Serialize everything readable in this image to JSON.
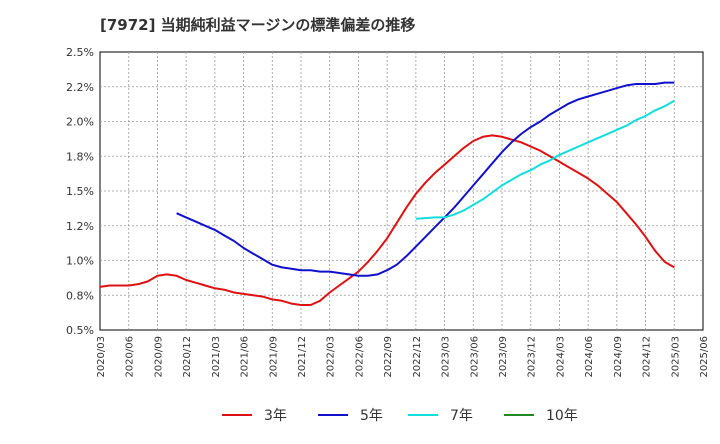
{
  "chart_data": {
    "type": "line",
    "title": "[7972]  当期純利益マージンの標準偏差の推移",
    "xlabel": "",
    "ylabel": "",
    "ylim": [
      0.5,
      2.5
    ],
    "y_ticks": [
      "0.5%",
      "0.8%",
      "1.0%",
      "1.2%",
      "1.5%",
      "1.8%",
      "2.0%",
      "2.2%",
      "2.5%"
    ],
    "y_tick_values": [
      0.5,
      0.75,
      1.0,
      1.25,
      1.5,
      1.75,
      2.0,
      2.25,
      2.5
    ],
    "x_ticks": [
      "2020/03",
      "2020/06",
      "2020/09",
      "2020/12",
      "2021/03",
      "2021/06",
      "2021/09",
      "2021/12",
      "2022/03",
      "2022/06",
      "2022/09",
      "2022/12",
      "2023/03",
      "2023/06",
      "2023/09",
      "2023/12",
      "2024/03",
      "2024/06",
      "2024/09",
      "2024/12",
      "2025/03",
      "2025/06"
    ],
    "grid": true,
    "legend_position": "bottom",
    "series": [
      {
        "name": "3年",
        "color": "#dd1111",
        "x": [
          "2020/03",
          "2020/04",
          "2020/05",
          "2020/06",
          "2020/07",
          "2020/08",
          "2020/09",
          "2020/10",
          "2020/11",
          "2020/12",
          "2021/01",
          "2021/02",
          "2021/03",
          "2021/04",
          "2021/05",
          "2021/06",
          "2021/07",
          "2021/08",
          "2021/09",
          "2021/10",
          "2021/11",
          "2021/12",
          "2022/01",
          "2022/02",
          "2022/03",
          "2022/04",
          "2022/05",
          "2022/06",
          "2022/07",
          "2022/08",
          "2022/09",
          "2022/10",
          "2022/11",
          "2022/12",
          "2023/01",
          "2023/02",
          "2023/03",
          "2023/04",
          "2023/05",
          "2023/06",
          "2023/07",
          "2023/08",
          "2023/09",
          "2023/10",
          "2023/11",
          "2023/12",
          "2024/01",
          "2024/02",
          "2024/03",
          "2024/04",
          "2024/05",
          "2024/06",
          "2024/07",
          "2024/08",
          "2024/09",
          "2024/10",
          "2024/11",
          "2024/12",
          "2025/01",
          "2025/02",
          "2025/03"
        ],
        "values": [
          0.81,
          0.82,
          0.82,
          0.82,
          0.83,
          0.85,
          0.89,
          0.9,
          0.89,
          0.86,
          0.84,
          0.82,
          0.8,
          0.79,
          0.77,
          0.76,
          0.75,
          0.74,
          0.72,
          0.71,
          0.69,
          0.68,
          0.68,
          0.71,
          0.77,
          0.82,
          0.87,
          0.92,
          0.99,
          1.07,
          1.16,
          1.27,
          1.38,
          1.48,
          1.56,
          1.63,
          1.69,
          1.75,
          1.81,
          1.86,
          1.89,
          1.9,
          1.89,
          1.87,
          1.85,
          1.82,
          1.79,
          1.75,
          1.71,
          1.67,
          1.63,
          1.59,
          1.54,
          1.48,
          1.42,
          1.34,
          1.26,
          1.17,
          1.07,
          0.99,
          0.95
        ]
      },
      {
        "name": "5年",
        "color": "#1111cc",
        "x": [
          "2020/11",
          "2020/12",
          "2021/01",
          "2021/02",
          "2021/03",
          "2021/04",
          "2021/05",
          "2021/06",
          "2021/07",
          "2021/08",
          "2021/09",
          "2021/10",
          "2021/11",
          "2021/12",
          "2022/01",
          "2022/02",
          "2022/03",
          "2022/04",
          "2022/05",
          "2022/06",
          "2022/07",
          "2022/08",
          "2022/09",
          "2022/10",
          "2022/11",
          "2022/12",
          "2023/01",
          "2023/02",
          "2023/03",
          "2023/04",
          "2023/05",
          "2023/06",
          "2023/07",
          "2023/08",
          "2023/09",
          "2023/10",
          "2023/11",
          "2023/12",
          "2024/01",
          "2024/02",
          "2024/03",
          "2024/04",
          "2024/05",
          "2024/06",
          "2024/07",
          "2024/08",
          "2024/09",
          "2024/10",
          "2024/11",
          "2024/12",
          "2025/01",
          "2025/02",
          "2025/03"
        ],
        "values": [
          1.34,
          1.31,
          1.28,
          1.25,
          1.22,
          1.18,
          1.14,
          1.09,
          1.05,
          1.01,
          0.97,
          0.95,
          0.94,
          0.93,
          0.93,
          0.92,
          0.92,
          0.91,
          0.9,
          0.89,
          0.89,
          0.9,
          0.93,
          0.97,
          1.03,
          1.1,
          1.17,
          1.24,
          1.31,
          1.38,
          1.46,
          1.54,
          1.62,
          1.7,
          1.78,
          1.85,
          1.91,
          1.96,
          2.0,
          2.05,
          2.09,
          2.13,
          2.16,
          2.18,
          2.2,
          2.22,
          2.24,
          2.26,
          2.27,
          2.27,
          2.27,
          2.28,
          2.28
        ]
      },
      {
        "name": "7年",
        "color": "#11dddd",
        "x": [
          "2022/12",
          "2023/01",
          "2023/02",
          "2023/03",
          "2023/04",
          "2023/05",
          "2023/06",
          "2023/07",
          "2023/08",
          "2023/09",
          "2023/10",
          "2023/11",
          "2023/12",
          "2024/01",
          "2024/02",
          "2024/03",
          "2024/04",
          "2024/05",
          "2024/06",
          "2024/07",
          "2024/08",
          "2024/09",
          "2024/10",
          "2024/11",
          "2024/12",
          "2025/01",
          "2025/02",
          "2025/03"
        ],
        "values": [
          1.3,
          1.305,
          1.31,
          1.31,
          1.33,
          1.36,
          1.4,
          1.44,
          1.49,
          1.54,
          1.58,
          1.62,
          1.65,
          1.69,
          1.72,
          1.76,
          1.79,
          1.82,
          1.85,
          1.88,
          1.91,
          1.94,
          1.97,
          2.01,
          2.04,
          2.08,
          2.11,
          2.15
        ]
      },
      {
        "name": "10年",
        "color": "#228822",
        "x": [],
        "values": []
      }
    ]
  }
}
